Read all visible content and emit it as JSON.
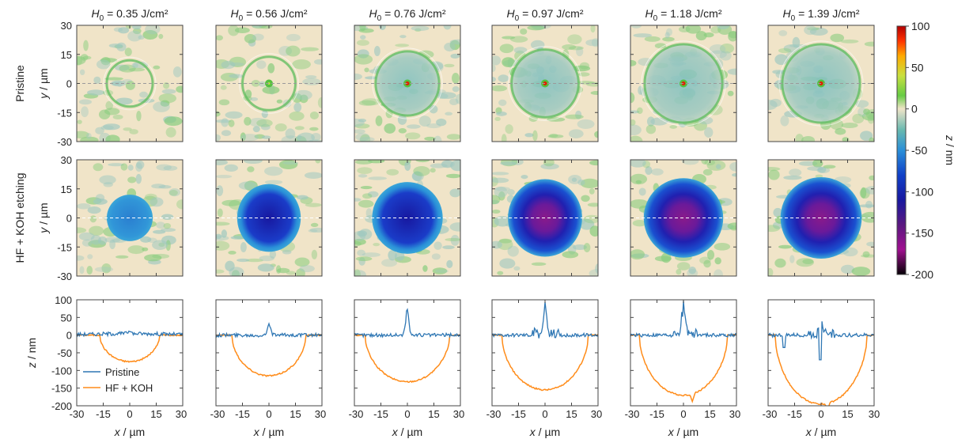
{
  "colors": {
    "pristine": "#2f77b4",
    "etched": "#ff8c1a",
    "background_map": "#f0e4c8",
    "guide_line": "#ffffff"
  },
  "chart_data": {
    "type": "heatmap",
    "panel_titles": [
      {
        "sym": "H",
        "sub": "0",
        "text": " = 0.35 J/cm²"
      },
      {
        "sym": "H",
        "sub": "0",
        "text": " = 0.56 J/cm²"
      },
      {
        "sym": "H",
        "sub": "0",
        "text": " = 0.76 J/cm²"
      },
      {
        "sym": "H",
        "sub": "0",
        "text": " = 0.97 J/cm²"
      },
      {
        "sym": "H",
        "sub": "0",
        "text": " = 1.18 J/cm²"
      },
      {
        "sym": "H",
        "sub": "0",
        "text": " = 1.39 J/cm²"
      }
    ],
    "fluences": [
      0.35,
      0.56,
      0.76,
      0.97,
      1.18,
      1.39
    ],
    "row_labels": [
      "Pristine",
      "HF + KOH etching"
    ],
    "map_axis": {
      "ylabel_sym": "y",
      "ylabel_unit": " / µm",
      "ticks": [
        30,
        15,
        0,
        -15,
        -30
      ],
      "range": [
        -30,
        30
      ]
    },
    "colorbar": {
      "label_sym": "z",
      "label_unit": " / nm",
      "range": [
        -200,
        100
      ],
      "ticks": [
        100,
        50,
        0,
        -50,
        -100,
        -150,
        -200
      ]
    },
    "pristine_maps": {
      "ring_radius_um": [
        13,
        15,
        18,
        19,
        22,
        22
      ],
      "central_peak": [
        false,
        true,
        true,
        true,
        true,
        true
      ]
    },
    "etched_maps": {
      "crater_radius_x_um": [
        13,
        18,
        20,
        21,
        22.5,
        23
      ],
      "crater_radius_y_um": [
        12,
        17.5,
        18.5,
        20,
        20.5,
        21
      ],
      "max_depth_nm": [
        -75,
        -115,
        -132,
        -155,
        -170,
        -195
      ]
    },
    "profile_axis": {
      "xlabel_sym": "x",
      "xlabel_unit": " / µm",
      "ylabel_sym": "z",
      "ylabel_unit": " / nm",
      "xticks": [
        -30,
        -15,
        0,
        15,
        30
      ],
      "yticks": [
        100,
        50,
        0,
        -50,
        -100,
        -150,
        -200
      ],
      "xlim": [
        -30,
        30
      ],
      "ylim": [
        -200,
        100
      ]
    },
    "legend": [
      "Pristine",
      "HF + KOH"
    ],
    "series": [
      {
        "name": "Pristine",
        "peak_nm": [
          10,
          35,
          85,
          85,
          95,
          60
        ]
      },
      {
        "name": "HF + KOH",
        "max_depth_nm": [
          -75,
          -115,
          -132,
          -155,
          -170,
          -195
        ],
        "crater_halfwidth_um": [
          17,
          21,
          24,
          24.5,
          25,
          26
        ]
      }
    ]
  }
}
